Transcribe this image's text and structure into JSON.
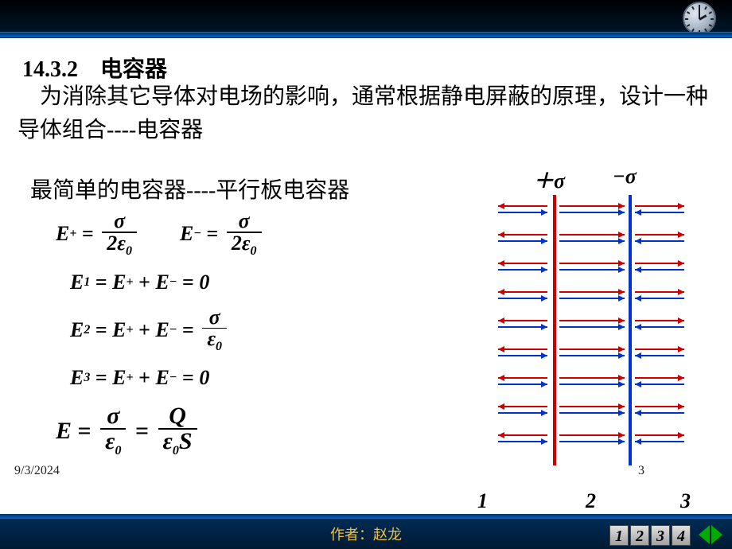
{
  "header": {
    "section_no": "14.3.2",
    "section_title": "电容器"
  },
  "body": {
    "paragraph": "为消除其它导体对电场的影响，通常根据静电屏蔽的原理，设计一种导体组合----电容器",
    "subline": "最简单的电容器----平行板电容器"
  },
  "equations": {
    "e_plus_lhs": "E",
    "e_plus_sub": "+",
    "e_minus_lhs": "E",
    "e_minus_sub": "−",
    "sigma": "σ",
    "two_eps": "2ε",
    "eps": "ε",
    "zero": "0",
    "eq_sign": "=",
    "plus_sign": "+",
    "val_zero": "0",
    "e1": "E",
    "s1": "1",
    "e2": "E",
    "s2": "2",
    "e3": "E",
    "s3": "3",
    "Q": "Q",
    "S": "S"
  },
  "diagram": {
    "sigma_plus": "＋σ",
    "sigma_minus": "−σ",
    "label1": "1",
    "label2": "2",
    "label3": "3",
    "colors": {
      "red": "#cc0000",
      "blue": "#0033cc"
    },
    "arrow_rows": 9,
    "arrow_length": 62
  },
  "footer": {
    "author": "作者：赵龙",
    "date": "9/3/2024",
    "page": "3",
    "nav": [
      "1",
      "2",
      "3",
      "4"
    ]
  }
}
